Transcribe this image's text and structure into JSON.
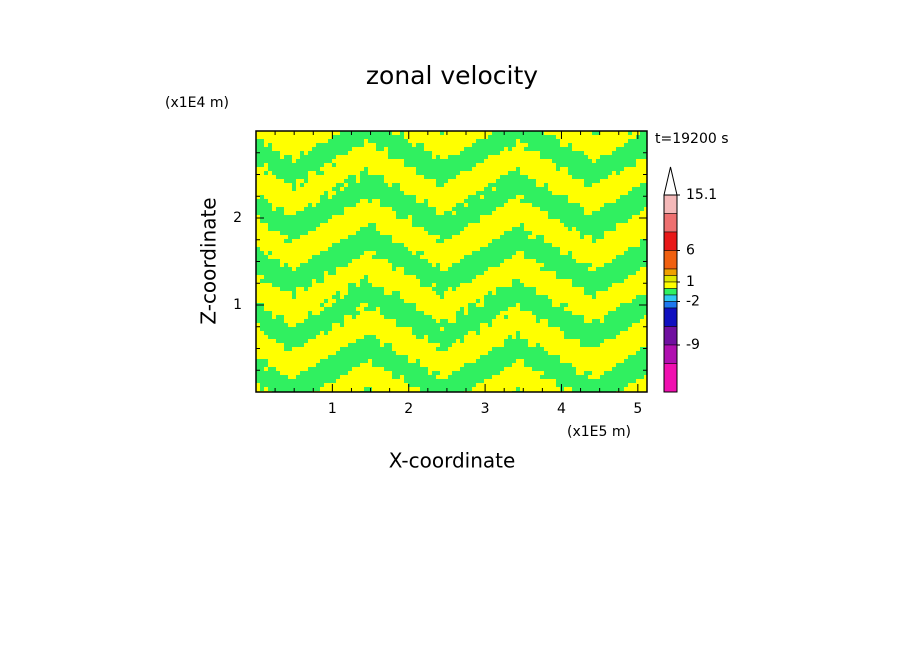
{
  "chart_data": {
    "type": "contour",
    "title": "zonal velocity",
    "x_label": "X-coordinate",
    "y_label": "Z-coordinate",
    "x_unit": "(x1E5 m)",
    "y_unit": "(x1E4 m)",
    "annotation": "t=19200 s",
    "xlim": [
      0,
      5.12
    ],
    "xticks": [
      1,
      2,
      3,
      4,
      5
    ],
    "ylim": [
      0,
      3
    ],
    "yticks": [
      1,
      2
    ],
    "field_colors": {
      "positive": "#ffff00",
      "negative": "#30f060"
    },
    "colorbar": {
      "levels": [
        15.1,
        12,
        9,
        6,
        3,
        2,
        1,
        0,
        -1,
        -2,
        -3,
        -6,
        -9,
        -12
      ],
      "colors": [
        "#f4b8b8",
        "#ee7070",
        "#e81818",
        "#f06010",
        "#f0a000",
        "#e0e800",
        "#ffff00",
        "#30f060",
        "#30c8f0",
        "#1e78f0",
        "#1010c0",
        "#7010a0",
        "#b010b0",
        "#f010b0"
      ],
      "ticks": [
        15.1,
        6,
        1,
        -2,
        -9
      ]
    }
  }
}
